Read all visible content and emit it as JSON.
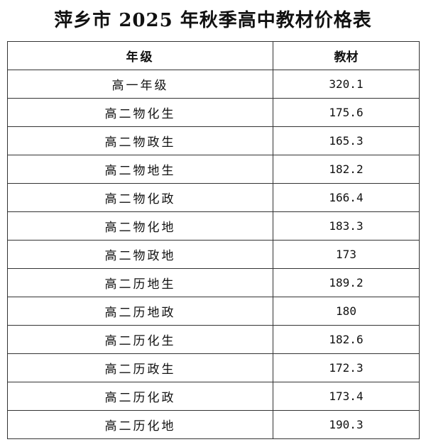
{
  "title": "萍乡市 2025 年秋季高中教材价格表",
  "table": {
    "headers": [
      "年级",
      "教材"
    ],
    "rows": [
      [
        "高一年级",
        "320.1"
      ],
      [
        "高二物化生",
        "175.6"
      ],
      [
        "高二物政生",
        "165.3"
      ],
      [
        "高二物地生",
        "182.2"
      ],
      [
        "高二物化政",
        "166.4"
      ],
      [
        "高二物化地",
        "183.3"
      ],
      [
        "高二物政地",
        "173"
      ],
      [
        "高二历地生",
        "189.2"
      ],
      [
        "高二历地政",
        "180"
      ],
      [
        "高二历化生",
        "182.6"
      ],
      [
        "高二历政生",
        "172.3"
      ],
      [
        "高二历化政",
        "173.4"
      ],
      [
        "高二历化地",
        "190.3"
      ]
    ]
  }
}
